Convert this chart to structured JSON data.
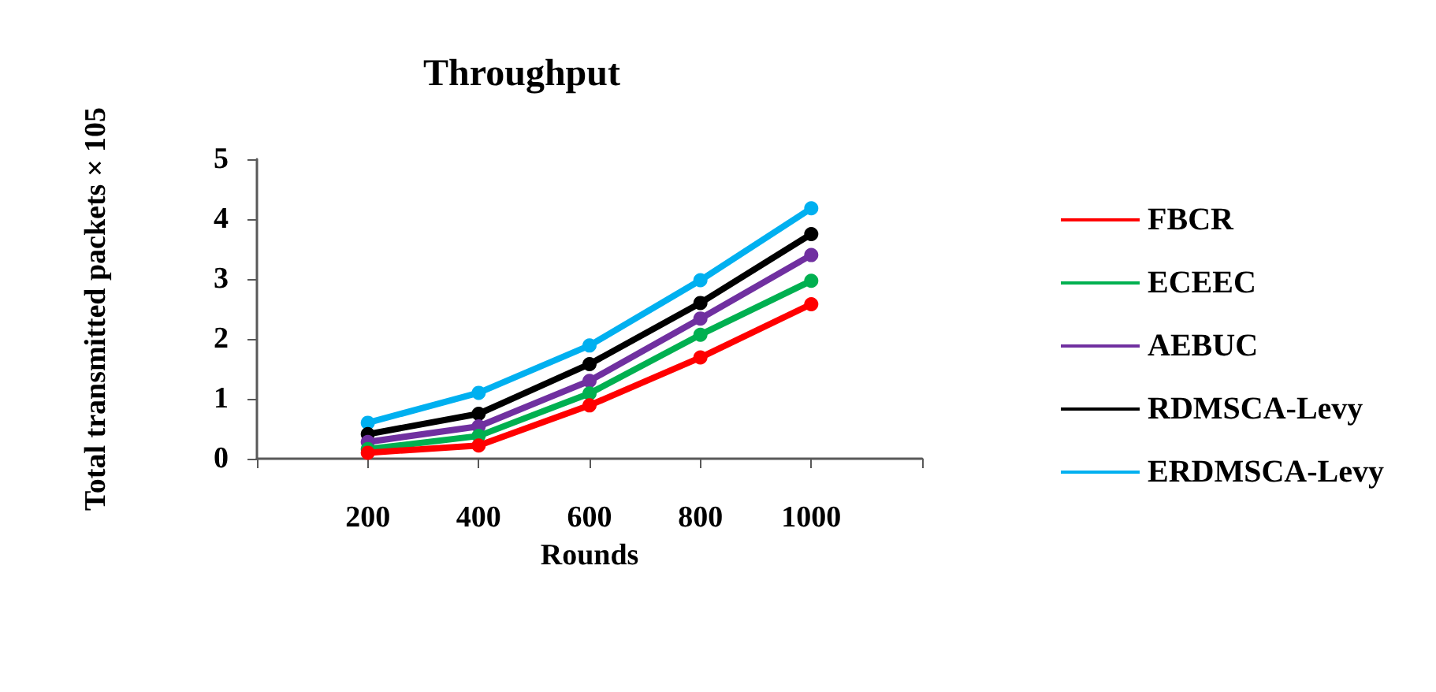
{
  "chart_data": {
    "type": "line",
    "title": "Throughput",
    "xlabel": "Rounds",
    "ylabel": "Total transmitted packets × 105",
    "x": [
      200,
      400,
      600,
      800,
      1000
    ],
    "xlim": [
      0,
      1200
    ],
    "xticks": [
      {
        "value": 0,
        "label": null
      },
      200,
      400,
      600,
      800,
      1000,
      {
        "value": 1200,
        "label": null
      }
    ],
    "ylim": [
      0,
      5
    ],
    "yticks": [
      0,
      1,
      2,
      3,
      4,
      5
    ],
    "grid": false,
    "legend": "right",
    "marker": "circle",
    "line_style": "solid",
    "series": [
      {
        "name": "FBCR",
        "color": "#ff0000",
        "values": [
          0.1,
          0.22,
          0.89,
          1.69,
          2.58
        ]
      },
      {
        "name": "ECEEC",
        "color": "#00b050",
        "values": [
          0.16,
          0.38,
          1.09,
          2.07,
          2.97
        ]
      },
      {
        "name": "AEBUC",
        "color": "#7030a0",
        "values": [
          0.28,
          0.54,
          1.3,
          2.34,
          3.4
        ]
      },
      {
        "name": "RDMSCA-Levy",
        "color": "#000000",
        "values": [
          0.41,
          0.75,
          1.58,
          2.6,
          3.75
        ]
      },
      {
        "name": "ERDMSCA-Levy",
        "color": "#00b0f0",
        "values": [
          0.6,
          1.1,
          1.89,
          2.98,
          4.18
        ]
      }
    ]
  }
}
